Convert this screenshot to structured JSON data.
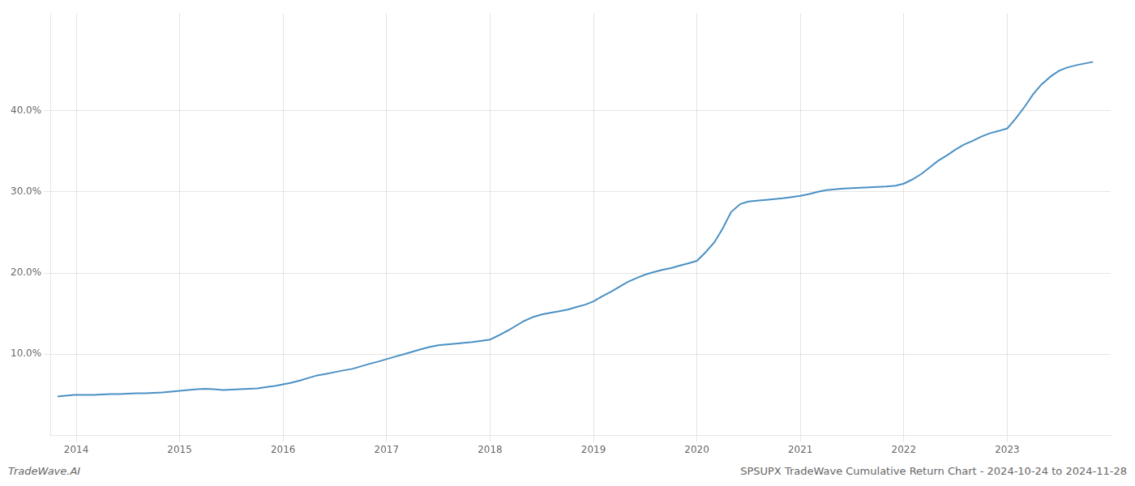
{
  "chart_data": {
    "type": "line",
    "annotations": [
      "TradeWave.AI",
      "SPSUPX TradeWave Cumulative Return Chart - 2024-10-24 to 2024-11-28"
    ],
    "color": "#4a90c4",
    "grid": true,
    "x": [
      2013.82,
      2013.9,
      2013.98,
      2014.0,
      2014.08,
      2014.17,
      2014.25,
      2014.33,
      2014.42,
      2014.5,
      2014.58,
      2014.67,
      2014.75,
      2014.83,
      2014.92,
      2015.0,
      2015.08,
      2015.17,
      2015.25,
      2015.33,
      2015.42,
      2015.5,
      2015.58,
      2015.67,
      2015.75,
      2015.83,
      2015.92,
      2016.0,
      2016.08,
      2016.17,
      2016.25,
      2016.33,
      2016.42,
      2016.5,
      2016.58,
      2016.67,
      2016.75,
      2016.83,
      2016.92,
      2017.0,
      2017.08,
      2017.17,
      2017.25,
      2017.33,
      2017.42,
      2017.5,
      2017.58,
      2017.67,
      2017.75,
      2017.83,
      2017.92,
      2018.0,
      2018.08,
      2018.17,
      2018.25,
      2018.33,
      2018.42,
      2018.5,
      2018.58,
      2018.67,
      2018.75,
      2018.83,
      2018.92,
      2019.0,
      2019.08,
      2019.17,
      2019.25,
      2019.33,
      2019.42,
      2019.5,
      2019.58,
      2019.67,
      2019.75,
      2019.83,
      2019.92,
      2020.0,
      2020.08,
      2020.17,
      2020.25,
      2020.33,
      2020.42,
      2020.5,
      2020.58,
      2020.67,
      2020.75,
      2020.83,
      2020.92,
      2021.0,
      2021.08,
      2021.17,
      2021.25,
      2021.33,
      2021.42,
      2021.5,
      2021.58,
      2021.67,
      2021.75,
      2021.83,
      2021.92,
      2022.0,
      2022.08,
      2022.17,
      2022.25,
      2022.33,
      2022.42,
      2022.5,
      2022.58,
      2022.67,
      2022.75,
      2022.83,
      2022.92,
      2023.0,
      2023.08,
      2023.17,
      2023.25,
      2023.33,
      2023.42,
      2023.5,
      2023.58,
      2023.67,
      2023.75,
      2023.83
    ],
    "values": [
      4.8,
      4.9,
      5.0,
      5.0,
      5.0,
      5.0,
      5.05,
      5.1,
      5.1,
      5.15,
      5.2,
      5.2,
      5.25,
      5.3,
      5.4,
      5.5,
      5.6,
      5.7,
      5.75,
      5.7,
      5.6,
      5.65,
      5.7,
      5.75,
      5.8,
      5.95,
      6.1,
      6.3,
      6.5,
      6.8,
      7.1,
      7.4,
      7.6,
      7.8,
      8.0,
      8.2,
      8.5,
      8.8,
      9.1,
      9.4,
      9.7,
      10.0,
      10.3,
      10.6,
      10.9,
      11.1,
      11.2,
      11.3,
      11.4,
      11.5,
      11.65,
      11.8,
      12.3,
      12.9,
      13.5,
      14.1,
      14.6,
      14.9,
      15.1,
      15.3,
      15.5,
      15.8,
      16.1,
      16.5,
      17.1,
      17.7,
      18.3,
      18.9,
      19.4,
      19.8,
      20.1,
      20.4,
      20.6,
      20.9,
      21.2,
      21.5,
      22.5,
      23.8,
      25.5,
      27.5,
      28.5,
      28.8,
      28.9,
      29.0,
      29.1,
      29.2,
      29.35,
      29.5,
      29.7,
      30.0,
      30.2,
      30.3,
      30.4,
      30.45,
      30.5,
      30.55,
      30.6,
      30.65,
      30.75,
      31.0,
      31.5,
      32.2,
      33.0,
      33.8,
      34.5,
      35.2,
      35.8,
      36.3,
      36.8,
      37.2,
      37.5,
      37.8,
      39.0,
      40.5,
      42.0,
      43.2,
      44.2,
      44.9,
      45.3,
      45.6,
      45.8,
      46.0
    ],
    "xlim": [
      2013.75,
      2024.0
    ],
    "ylim": [
      0,
      52
    ],
    "xticks": [
      2014,
      2015,
      2016,
      2017,
      2018,
      2019,
      2020,
      2021,
      2022,
      2023
    ],
    "yticks": [
      {
        "value": 10.0,
        "label": "10.0%"
      },
      {
        "value": 20.0,
        "label": "20.0%"
      },
      {
        "value": 30.0,
        "label": "30.0%"
      },
      {
        "value": 40.0,
        "label": "40.0%"
      }
    ]
  }
}
